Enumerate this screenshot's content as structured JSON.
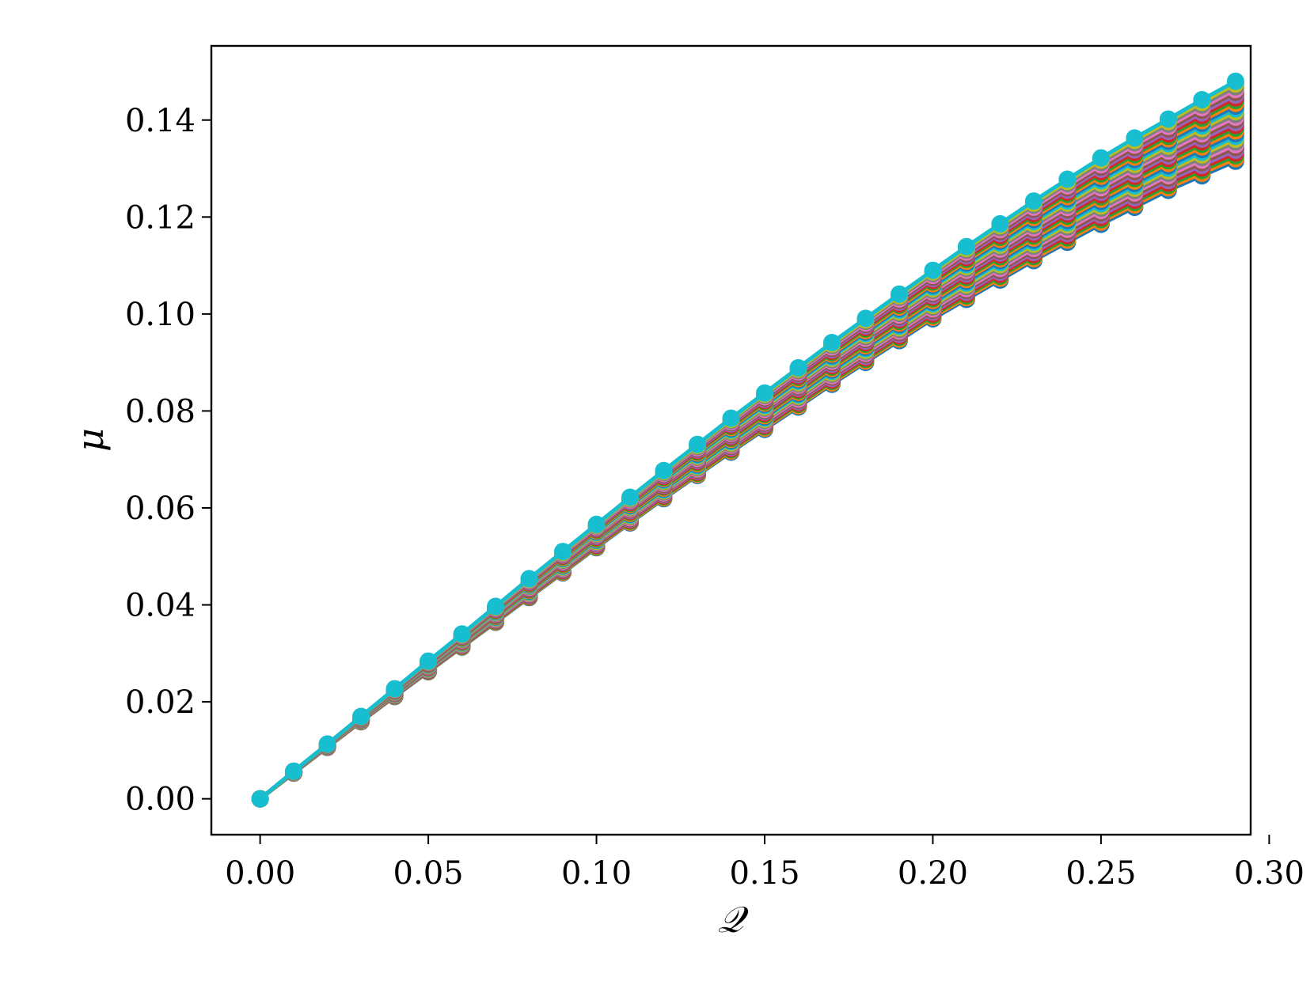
{
  "chart_data": {
    "type": "line",
    "xlabel": "𝒬",
    "ylabel": "μ",
    "xlim": [
      -0.0145,
      0.2945
    ],
    "ylim": [
      -0.0074,
      0.1553
    ],
    "xticks": [
      0.0,
      0.05,
      0.1,
      0.15,
      0.2,
      0.25,
      0.3
    ],
    "xtick_labels": [
      "0.00",
      "0.05",
      "0.10",
      "0.15",
      "0.20",
      "0.25",
      "0.30"
    ],
    "yticks": [
      0.0,
      0.02,
      0.04,
      0.06,
      0.08,
      0.1,
      0.12,
      0.14
    ],
    "ytick_labels": [
      "0.00",
      "0.02",
      "0.04",
      "0.06",
      "0.08",
      "0.10",
      "0.12",
      "0.14"
    ],
    "grid": false,
    "legend": "none",
    "markers": true,
    "x": [
      0.0,
      0.01,
      0.02,
      0.03,
      0.04,
      0.05,
      0.06,
      0.07,
      0.08,
      0.09,
      0.1,
      0.11,
      0.12,
      0.13,
      0.14,
      0.15,
      0.16,
      0.17,
      0.18,
      0.19,
      0.2,
      0.21,
      0.22,
      0.23,
      0.24,
      0.25,
      0.26,
      0.27,
      0.28,
      0.29
    ],
    "curve_family": {
      "count": 30,
      "lowest_series": [
        0.0,
        0.0053,
        0.0106,
        0.0159,
        0.0211,
        0.0262,
        0.0313,
        0.0364,
        0.0415,
        0.0466,
        0.0518,
        0.0569,
        0.0619,
        0.0667,
        0.0715,
        0.0762,
        0.0808,
        0.0855,
        0.09,
        0.0945,
        0.099,
        0.103,
        0.107,
        0.111,
        0.1148,
        0.1185,
        0.122,
        0.1255,
        0.1285,
        0.1315
      ],
      "highest_series": [
        0.0,
        0.0057,
        0.0113,
        0.017,
        0.0227,
        0.0284,
        0.034,
        0.0397,
        0.0454,
        0.051,
        0.0566,
        0.0622,
        0.0677,
        0.0731,
        0.0785,
        0.0837,
        0.0889,
        0.0941,
        0.0991,
        0.1041,
        0.109,
        0.1139,
        0.1186,
        0.1233,
        0.1278,
        0.1322,
        0.1363,
        0.1402,
        0.1442,
        0.148
      ],
      "colors": [
        "#1f77b4",
        "#ff7f0e",
        "#2ca02c",
        "#d62728",
        "#9467bd",
        "#8c564b",
        "#e377c2",
        "#7f7f7f",
        "#bcbd22",
        "#17becf"
      ]
    }
  }
}
